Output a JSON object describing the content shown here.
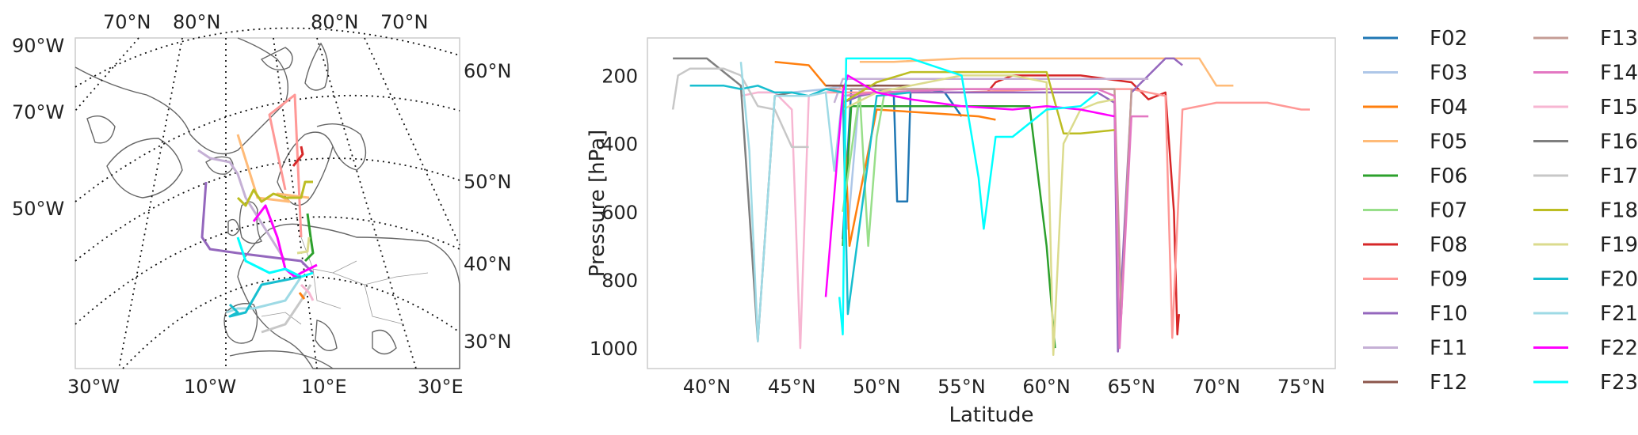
{
  "map": {
    "lat_labels_left": [
      "90°W",
      "70°W",
      "50°W"
    ],
    "lat_labels_right": [
      "60°N",
      "50°N",
      "40°N",
      "30°N"
    ],
    "top_labels": [
      "70°N",
      "80°N",
      "80°N",
      "70°N"
    ],
    "bottom_labels": [
      "30°W",
      "10°W",
      "10°E",
      "30°E"
    ]
  },
  "chart_data": {
    "type": "line",
    "title": "",
    "xlabel": "Latitude",
    "ylabel": "Pressure [hPa]",
    "xlim": [
      36.5,
      77
    ],
    "ylim": [
      1060,
      90
    ],
    "y_inverted": true,
    "grid": false,
    "legend_position": "outside-right",
    "x_ticks": [
      40,
      45,
      50,
      55,
      60,
      65,
      70,
      75
    ],
    "x_tick_labels": [
      "40°N",
      "45°N",
      "50°N",
      "55°N",
      "60°N",
      "65°N",
      "70°N",
      "75°N"
    ],
    "y_ticks": [
      200,
      400,
      600,
      800,
      1000
    ],
    "y_tick_labels": [
      "200",
      "400",
      "600",
      "800",
      "1000"
    ],
    "series": [
      {
        "name": "F02",
        "color": "#1f77b4",
        "x": [
          48,
          48.5,
          50,
          51,
          51.2,
          51.8,
          52,
          53,
          54,
          55
        ],
        "y": [
          680,
          240,
          240,
          250,
          570,
          570,
          240,
          240,
          250,
          320
        ]
      },
      {
        "name": "F03",
        "color": "#aec7e8",
        "x": [
          43,
          45,
          47,
          48,
          48.3,
          49,
          50,
          52
        ],
        "y": [
          250,
          250,
          240,
          230,
          650,
          240,
          230,
          230
        ]
      },
      {
        "name": "F04",
        "color": "#ff7f0e",
        "x": [
          44,
          46,
          47,
          48,
          48.4,
          50,
          53,
          56,
          57
        ],
        "y": [
          160,
          170,
          230,
          230,
          700,
          300,
          310,
          320,
          330
        ]
      },
      {
        "name": "F05",
        "color": "#ffbb78",
        "x": [
          49,
          51,
          55,
          60,
          65,
          67,
          69,
          70,
          71
        ],
        "y": [
          160,
          160,
          150,
          150,
          150,
          150,
          150,
          230,
          230
        ]
      },
      {
        "name": "F06",
        "color": "#2ca02c",
        "x": [
          48,
          48.5,
          50,
          55,
          59,
          60,
          60.5
        ],
        "y": [
          700,
          290,
          290,
          290,
          290,
          700,
          1000
        ]
      },
      {
        "name": "F07",
        "color": "#98df8a",
        "x": [
          48,
          49,
          49.5,
          50,
          50.5,
          51,
          52,
          54
        ],
        "y": [
          600,
          250,
          700,
          380,
          240,
          240,
          240,
          240
        ]
      },
      {
        "name": "F08",
        "color": "#d62728",
        "x": [
          56.5,
          57,
          58,
          59,
          60,
          62,
          65,
          66,
          67,
          67.5,
          67.7,
          67.8
        ],
        "y": [
          250,
          220,
          200,
          200,
          200,
          200,
          220,
          270,
          250,
          600,
          960,
          900
        ]
      },
      {
        "name": "F09",
        "color": "#ff9896",
        "x": [
          47,
          48,
          50,
          55,
          60,
          65,
          67,
          67.4,
          68,
          70,
          73,
          75,
          75.5
        ],
        "y": [
          250,
          250,
          250,
          250,
          240,
          240,
          260,
          970,
          300,
          280,
          280,
          300,
          300
        ]
      },
      {
        "name": "F10",
        "color": "#9467bd",
        "x": [
          48,
          49,
          50,
          55,
          60,
          63,
          64,
          64.2,
          65,
          66,
          67,
          67.5,
          68
        ],
        "y": [
          280,
          260,
          250,
          250,
          250,
          250,
          280,
          1010,
          250,
          200,
          150,
          150,
          170
        ]
      },
      {
        "name": "F11",
        "color": "#c5b0d5",
        "x": [
          47.5,
          48,
          49,
          50,
          52,
          55,
          58,
          60,
          63,
          66
        ],
        "y": [
          280,
          210,
          210,
          210,
          210,
          210,
          210,
          210,
          210,
          210
        ]
      },
      {
        "name": "F12",
        "color": "#8c564b",
        "x": [
          47,
          48,
          49,
          50,
          52
        ],
        "y": [
          230,
          230,
          230,
          230,
          230
        ]
      },
      {
        "name": "F13",
        "color": "#c49c94",
        "x": [
          47,
          48,
          50,
          54,
          58,
          62,
          64,
          64.4,
          65
        ],
        "y": [
          240,
          240,
          240,
          240,
          240,
          240,
          240,
          900,
          240
        ]
      },
      {
        "name": "F14",
        "color": "#e377c2",
        "x": [
          48,
          50,
          55,
          60,
          63,
          64,
          64.3,
          65,
          66
        ],
        "y": [
          260,
          250,
          240,
          240,
          240,
          260,
          1000,
          320,
          320
        ]
      },
      {
        "name": "F15",
        "color": "#f7b6d2",
        "x": [
          42,
          43,
          44,
          45,
          45.5,
          46,
          47,
          48
        ],
        "y": [
          260,
          250,
          250,
          300,
          1000,
          260,
          250,
          240
        ]
      },
      {
        "name": "F16",
        "color": "#7f7f7f",
        "x": [
          38,
          40,
          42,
          42.5,
          43,
          44,
          45
        ],
        "y": [
          150,
          150,
          230,
          600,
          980,
          260,
          250
        ]
      },
      {
        "name": "F17",
        "color": "#c7c7c7",
        "x": [
          38,
          38.3,
          39,
          41,
          42,
          43,
          44,
          45,
          46
        ],
        "y": [
          300,
          200,
          180,
          180,
          200,
          290,
          300,
          410,
          410
        ]
      },
      {
        "name": "F18",
        "color": "#bcbd22",
        "x": [
          48,
          50,
          52,
          55,
          58,
          60,
          61,
          62,
          64
        ],
        "y": [
          280,
          220,
          190,
          190,
          190,
          190,
          370,
          370,
          360
        ]
      },
      {
        "name": "F19",
        "color": "#dbdb8d",
        "x": [
          48,
          50,
          53,
          55,
          58,
          60,
          60.4,
          61,
          62,
          63,
          64
        ],
        "y": [
          300,
          250,
          220,
          200,
          200,
          220,
          1020,
          400,
          300,
          280,
          270
        ]
      },
      {
        "name": "F20",
        "color": "#17becf",
        "x": [
          39,
          41,
          42,
          43,
          44,
          45,
          46,
          47,
          48,
          48.3,
          50,
          52
        ],
        "y": [
          230,
          230,
          240,
          230,
          250,
          250,
          260,
          240,
          250,
          900,
          260,
          250
        ]
      },
      {
        "name": "F21",
        "color": "#9edae5",
        "x": [
          42,
          42.5,
          43,
          44,
          46,
          47,
          47.5,
          48
        ],
        "y": [
          160,
          420,
          980,
          260,
          260,
          250,
          480,
          250
        ]
      },
      {
        "name": "F22",
        "color": "#ff00ff",
        "x": [
          47,
          48,
          48.3,
          50,
          52,
          55,
          58,
          60,
          62,
          64
        ],
        "y": [
          850,
          250,
          200,
          250,
          270,
          290,
          300,
          290,
          300,
          320
        ]
      },
      {
        "name": "F23",
        "color": "#00ffff",
        "x": [
          47.8,
          48,
          48.2,
          50,
          52,
          55,
          56,
          56.3,
          57,
          58,
          60,
          62,
          63
        ],
        "y": [
          850,
          960,
          150,
          150,
          150,
          200,
          500,
          650,
          380,
          380,
          300,
          290,
          250
        ]
      }
    ]
  },
  "colors": {
    "axis_frame": "#cccccc",
    "text": "#222222"
  }
}
